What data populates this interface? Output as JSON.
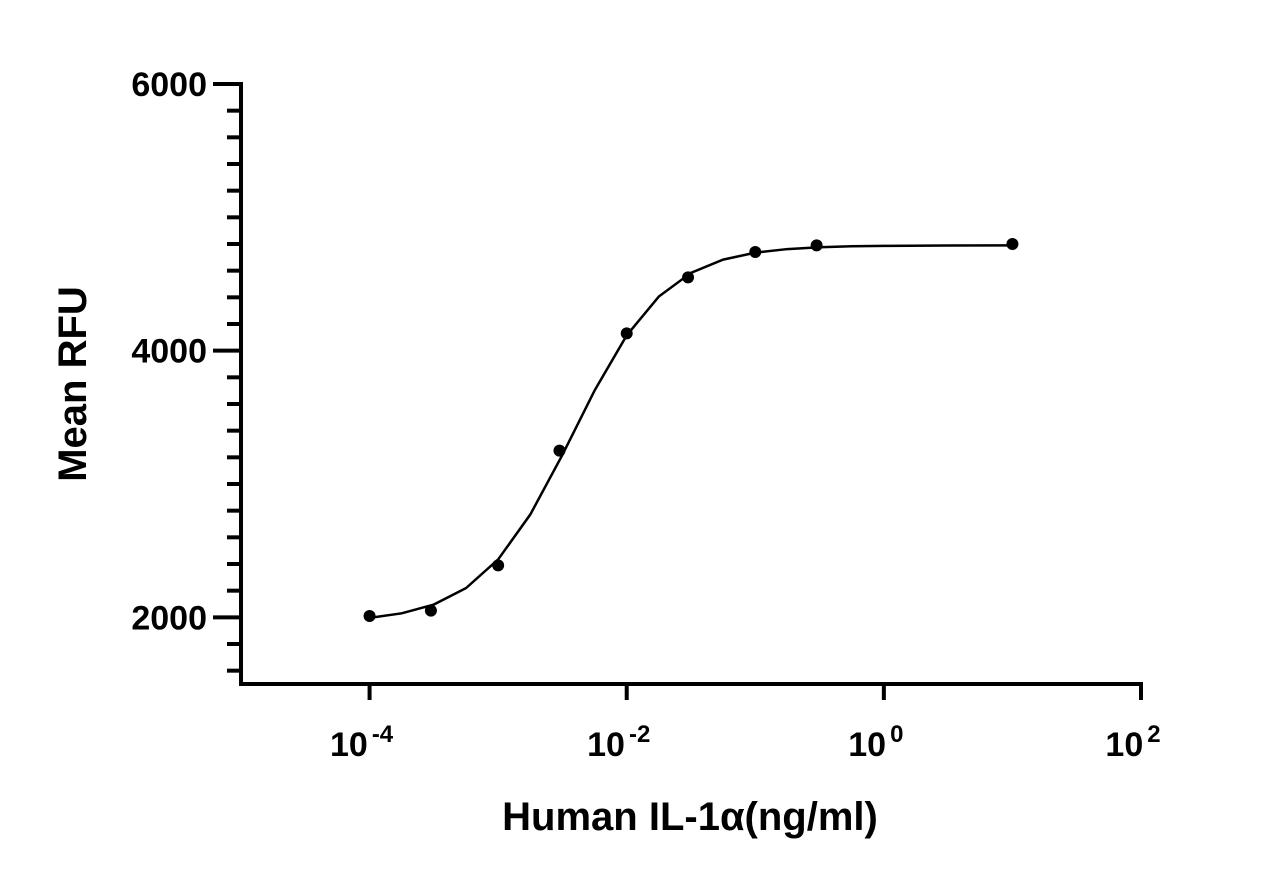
{
  "chart_data": {
    "type": "scatter",
    "x_label": "Human IL-1α(ng/ml)",
    "y_label": "Mean RFU",
    "x_log": true,
    "xlim": [
      1e-05,
      100
    ],
    "ylim": [
      1500,
      6000
    ],
    "xticks": [
      {
        "value": 0.0001,
        "label": "10",
        "exponent": "-4"
      },
      {
        "value": 0.01,
        "label": "10",
        "exponent": "-2"
      },
      {
        "value": 1,
        "label": "10",
        "exponent": "0"
      },
      {
        "value": 100,
        "label": "10",
        "exponent": "2"
      }
    ],
    "yticks": [
      2000,
      4000,
      6000
    ],
    "yminorticks": [
      1600,
      1800,
      2200,
      2400,
      2600,
      2800,
      3000,
      3200,
      3400,
      3600,
      3800,
      4200,
      4400,
      4600,
      4800,
      5000,
      5200,
      5400,
      5600,
      5800
    ],
    "series": [
      {
        "color": "#000000",
        "x": [
          0.0001,
          0.0003,
          0.001,
          0.003,
          0.01,
          0.03,
          0.1,
          0.3,
          10
        ],
        "values": [
          2010,
          2050,
          2390,
          3250,
          4130,
          4550,
          4740,
          4790,
          4800
        ]
      },
      {
        "color": "#000000",
        "style": "line",
        "x": [
          0.0001,
          0.0001778,
          0.0003162,
          0.0005623,
          0.001,
          0.001778,
          0.003162,
          0.005623,
          0.01,
          0.01778,
          0.03162,
          0.05623,
          0.1,
          0.1778,
          0.3162,
          0.5623,
          1,
          3.162,
          10
        ],
        "values": [
          1996,
          2030,
          2096,
          2219,
          2434,
          2771,
          3219,
          3701,
          4115,
          4406,
          4584,
          4683,
          4735,
          4762,
          4776,
          4783,
          4786,
          4789,
          4790
        ]
      }
    ]
  }
}
